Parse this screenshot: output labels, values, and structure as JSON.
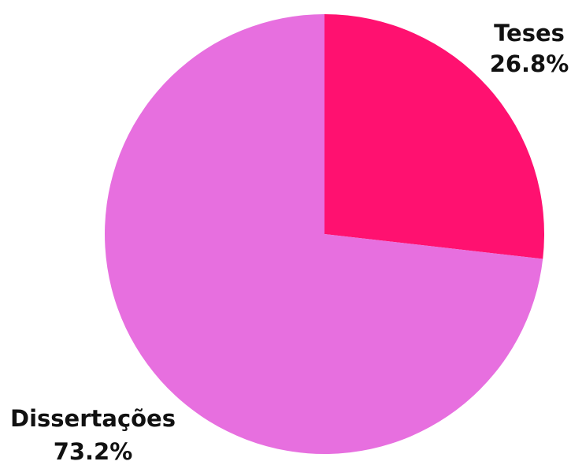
{
  "chart_data": {
    "type": "pie",
    "slices": [
      {
        "label": "Teses",
        "value": 26.8,
        "value_label": "26.8%",
        "color": "#ff1170"
      },
      {
        "label": "Dissertações",
        "value": 73.2,
        "value_label": "73.2%",
        "color": "#e76fdf"
      }
    ],
    "start_angle_deg": 0,
    "direction": "clockwise",
    "legend": "none"
  }
}
